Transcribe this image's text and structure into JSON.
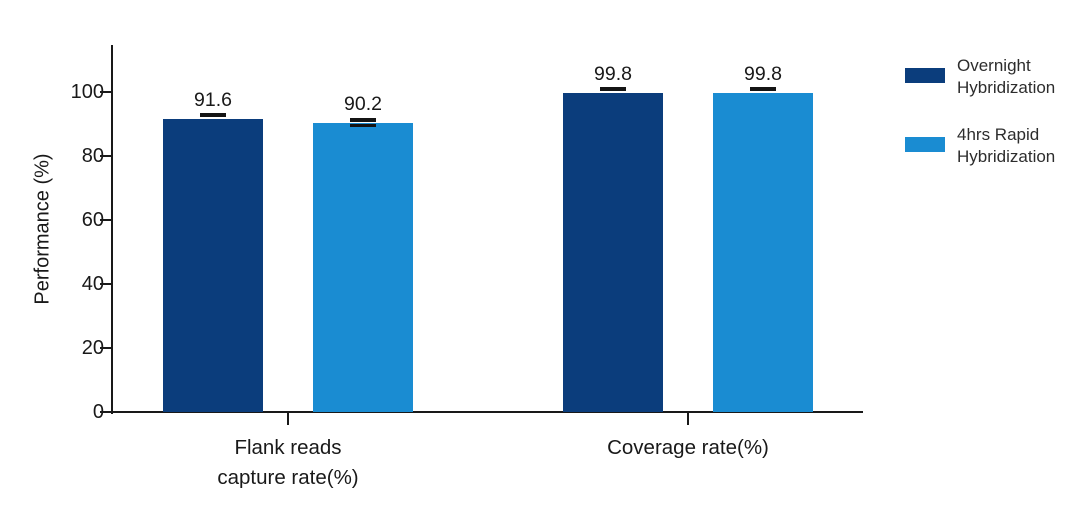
{
  "chart_data": {
    "type": "bar",
    "title": "",
    "xlabel": "",
    "ylabel": "Performance (%)",
    "ylim": [
      0,
      100
    ],
    "yticks": [
      "0",
      "20",
      "40",
      "60",
      "80",
      "100"
    ],
    "grid": false,
    "legend_position": "right",
    "categories": [
      {
        "label": "Flank reads capture rate(%)",
        "lines": [
          "Flank reads",
          "capture rate(%)"
        ]
      },
      {
        "label": "Coverage rate(%)",
        "lines": [
          "Coverage rate(%)"
        ]
      }
    ],
    "series": [
      {
        "name": "Overnight Hybridization",
        "color": "#0b3d7c",
        "values": [
          91.6,
          99.8
        ]
      },
      {
        "name": "4hrs Rapid Hybridization",
        "color": "#1a8cd2",
        "values": [
          90.2,
          99.8
        ]
      }
    ],
    "points": [
      {
        "category_index": 0,
        "series_index": 0,
        "value": 91.6,
        "label": "91.6",
        "error_cap": "single"
      },
      {
        "category_index": 0,
        "series_index": 1,
        "value": 90.2,
        "label": "90.2",
        "error_cap": "double"
      },
      {
        "category_index": 1,
        "series_index": 0,
        "value": 99.8,
        "label": "99.8",
        "error_cap": "single"
      },
      {
        "category_index": 1,
        "series_index": 1,
        "value": 99.8,
        "label": "99.8",
        "error_cap": "single"
      }
    ],
    "error_bar_color": "#141414"
  },
  "legend": {
    "items": [
      {
        "label": "Overnight Hybridization",
        "lines": [
          "Overnight",
          "Hybridization"
        ],
        "color": "#0b3d7c"
      },
      {
        "label": "4hrs Rapid Hybridization",
        "lines": [
          "4hrs Rapid",
          "Hybridization"
        ],
        "color": "#1a8cd2"
      }
    ]
  },
  "colors": {
    "background": "#ffffff",
    "axis": "#191919",
    "text": "#191919",
    "legend_text": "#2d2d2d"
  }
}
